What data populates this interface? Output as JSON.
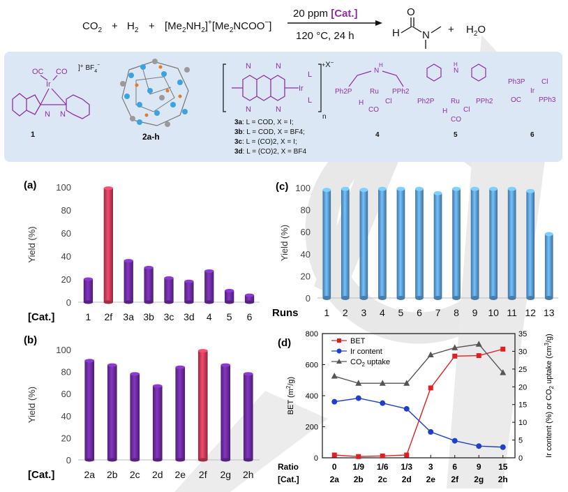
{
  "reaction": {
    "reactant_1": "CO",
    "reactant_1_sub": "2",
    "plus": "+",
    "reactant_2": "H",
    "reactant_2_sub": "2",
    "carbamate_a": "[Me",
    "carbamate_a_sub": "2",
    "carbamate_b": "NH",
    "carbamate_b_sub": "2",
    "carbamate_c": "]",
    "carbamate_c_sup": "+",
    "carbamate_d": "[Me",
    "carbamate_d_sub": "2",
    "carbamate_e": "NCOO",
    "carbamate_e_sup": "−",
    "carbamate_f": "]",
    "catalyst_loading": "20 ppm ",
    "catalyst_tag": "[Cat.]",
    "conditions": "120 °C, 24 h",
    "product_atom_h": "H",
    "product_atom_o": "O",
    "product_atom_n": "N",
    "byproduct": "H",
    "byproduct_sub": "2",
    "byproduct_o": "O"
  },
  "catalysts": {
    "c1": {
      "label": "1",
      "counter_ion": "BF",
      "counter_ion_sub": "4",
      "counter_ion_sup": "−",
      "oc": "OC",
      "co": "CO",
      "metal": "Ir",
      "n1": "N",
      "n2": "N"
    },
    "c2": {
      "label": "2a-h"
    },
    "c3": {
      "metal": "Ir",
      "ligand_l": "L",
      "anion": "X",
      "anion_sup": "−",
      "charge": "+",
      "repeat": "n",
      "n": "N",
      "lines": [
        {
          "id": "3a",
          "text": ": L = COD, X = I;"
        },
        {
          "id": "3b",
          "text": ": L = COD, X = BF4;"
        },
        {
          "id": "3c",
          "text": ": L = (CO)2, X = I;"
        },
        {
          "id": "3d",
          "text": ": L = (CO)2, X = BF4"
        }
      ]
    },
    "c4": {
      "label": "4",
      "nh": "N",
      "nh_h": "H",
      "ppha": "Ph2P",
      "pphb": "PPh2",
      "metal": "Ru",
      "h": "H",
      "cl": "Cl",
      "co": "CO"
    },
    "c5": {
      "label": "5",
      "nh": "N",
      "nh_h": "H",
      "ppha": "Ph2P",
      "pphb": "PPh2",
      "metal": "Ru",
      "h": "H",
      "cl": "Cl",
      "co": "CO"
    },
    "c6": {
      "label": "6",
      "ph3p": "Ph3P",
      "oc": "OC",
      "metal": "Ir",
      "cl": "Cl",
      "pph3": "PPh3"
    }
  },
  "chart_data": [
    {
      "panel": "(a)",
      "type": "bar",
      "ylabel": "Yield (%)",
      "xlabel": "[Cat.]",
      "ylim": [
        0,
        100
      ],
      "yticks": [
        0,
        20,
        40,
        60,
        80,
        100
      ],
      "categories": [
        "1",
        "2f",
        "3a",
        "3b",
        "3c",
        "3d",
        "4",
        "5",
        "6"
      ],
      "values": [
        20,
        99,
        36,
        30,
        21,
        18,
        27,
        10,
        6
      ],
      "highlight_index": 1,
      "colors": {
        "bar": "#6a2a9c",
        "highlight": "#c43a57"
      }
    },
    {
      "panel": "(b)",
      "type": "bar",
      "ylabel": "Yield (%)",
      "xlabel": "[Cat.]",
      "ylim": [
        0,
        100
      ],
      "yticks": [
        0,
        20,
        40,
        60,
        80,
        100
      ],
      "categories": [
        "2a",
        "2b",
        "2c",
        "2d",
        "2e",
        "2f",
        "2g",
        "2h"
      ],
      "values": [
        90,
        86,
        78,
        67,
        84,
        99,
        86,
        78
      ],
      "highlight_index": 5,
      "colors": {
        "bar": "#6a2a9c",
        "highlight": "#c43a57"
      }
    },
    {
      "panel": "(c)",
      "type": "bar",
      "ylabel": "Yield (%)",
      "xlabel": "Runs",
      "ylim": [
        0,
        100
      ],
      "yticks": [
        0,
        20,
        40,
        60,
        80,
        100
      ],
      "categories": [
        "1",
        "2",
        "3",
        "4",
        "5",
        "6",
        "7",
        "8",
        "9",
        "10",
        "11",
        "12",
        "13"
      ],
      "values": [
        98,
        99,
        98,
        99,
        99,
        99,
        95,
        99,
        99,
        99,
        99,
        97,
        58
      ],
      "colors": {
        "bar": "#5b9bd5"
      }
    },
    {
      "panel": "(d)",
      "type": "line",
      "ylabel_left": "BET (m2/g)",
      "ylabel_right": "Ir content (%) or CO2 uptake (cm3/g)",
      "ylim_left": [
        0,
        800
      ],
      "yticks_left": [
        0,
        200,
        400,
        600,
        800
      ],
      "ylim_right": [
        0,
        35
      ],
      "yticks_right": [
        0,
        5,
        10,
        15,
        20,
        25,
        30,
        35
      ],
      "x_row1_label": "Ratio",
      "x_row2_label": "[Cat.]",
      "ratios": [
        "0",
        "1/9",
        "1/6",
        "1/3",
        "3",
        "6",
        "9",
        "15"
      ],
      "categories": [
        "2a",
        "2b",
        "2c",
        "2d",
        "2e",
        "2f",
        "2g",
        "2h"
      ],
      "legend_position": "top-left",
      "series": [
        {
          "name": "BET",
          "axis": "left",
          "color": "#e02020",
          "marker": "square",
          "values": [
            18,
            8,
            12,
            18,
            450,
            655,
            658,
            700
          ]
        },
        {
          "name": "Ir content",
          "axis": "right",
          "color": "#1f3fc9",
          "marker": "circle",
          "values": [
            15.8,
            16.8,
            15.4,
            13.8,
            7.3,
            4.8,
            3.3,
            3.0
          ]
        },
        {
          "name": "CO2 uptake",
          "axis": "right",
          "color": "#555555",
          "marker": "triangle",
          "values": [
            23.0,
            21.0,
            21.0,
            21.0,
            29.0,
            31.0,
            32.0,
            24.0
          ]
        }
      ]
    }
  ]
}
